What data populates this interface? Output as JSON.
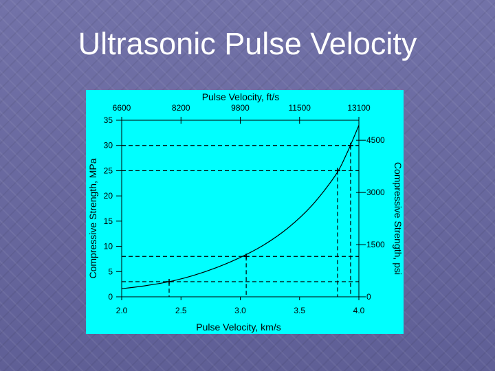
{
  "slide": {
    "title": "Ultrasonic Pulse Velocity"
  },
  "chart_data": {
    "type": "line",
    "x_axis": {
      "label": "Pulse Velocity, km/s",
      "range": [
        2.0,
        4.0
      ],
      "ticks": [
        2.0,
        2.5,
        3.0,
        3.5,
        4.0
      ],
      "tick_labels": [
        "2.0",
        "2.5",
        "3.0",
        "3.5",
        "4.0"
      ]
    },
    "x_axis_top": {
      "label": "Pulse Velocity, ft/s",
      "tick_labels": [
        "6600",
        "8200",
        "9800",
        "11500",
        "13100"
      ],
      "tick_positions_kms": [
        2.0,
        2.5,
        3.0,
        3.5,
        4.0
      ]
    },
    "y_axis": {
      "label": "Compressive Strength, MPa",
      "range": [
        0,
        35
      ],
      "ticks": [
        0,
        5,
        10,
        15,
        20,
        25,
        30,
        35
      ],
      "tick_labels": [
        "0",
        "5",
        "10",
        "15",
        "20",
        "25",
        "30",
        "35"
      ]
    },
    "y_axis_right": {
      "label": "Compressive Strength, psi",
      "tick_labels": [
        "0",
        "1500",
        "3000",
        "4500"
      ],
      "tick_positions_mpa": [
        0,
        10.34,
        20.68,
        31.03
      ]
    },
    "series": [
      {
        "x": [
          2.0,
          2.2,
          2.4,
          2.6,
          2.8,
          3.0,
          3.2,
          3.4,
          3.6,
          3.8,
          3.9,
          4.0
        ],
        "y": [
          1.6,
          2.2,
          3.0,
          4.2,
          5.8,
          7.8,
          10.3,
          13.6,
          18.0,
          24.0,
          28.5,
          34.0
        ]
      }
    ],
    "reference_points": [
      {
        "x": 2.4,
        "y": 3.0
      },
      {
        "x": 3.05,
        "y": 8.0
      },
      {
        "x": 3.82,
        "y": 25.0
      },
      {
        "x": 3.93,
        "y": 30.0
      }
    ],
    "vertical_line_x": 4.0,
    "grid": false,
    "legend": "none"
  }
}
